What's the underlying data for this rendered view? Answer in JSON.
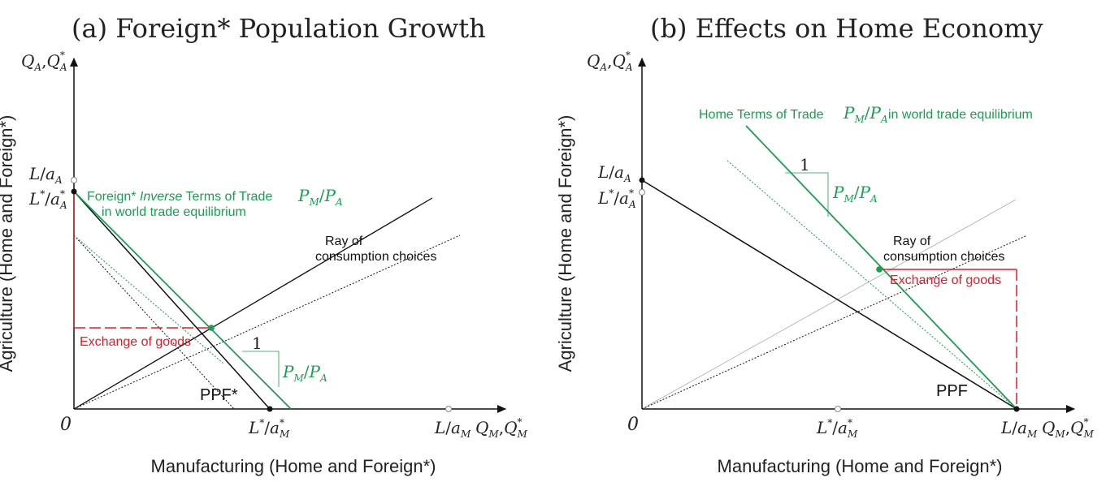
{
  "colors": {
    "green": "#1a9e50",
    "red": "#d9202a",
    "black": "#111111",
    "gray": "#999999"
  },
  "panel_a": {
    "title": "(a) Foreign* Population Growth",
    "y_axis_symbol": "Q_A, Q*_A",
    "x_axis_symbol": "Q_M, Q*_M",
    "origin": "0",
    "x_label": "Manufacturing (Home and Foreign*)",
    "y_label": "Agriculture (Home and Foreign*)",
    "tick_y_home": "L/a_A",
    "tick_y_foreign": "L*/a*_A",
    "tick_x_foreign": "L*/a*_M",
    "tick_x_home": "L/a_M",
    "tot_label_part1": "Foreign* ",
    "tot_label_italic": "Inverse",
    "tot_label_part2": " Terms of Trade",
    "tot_label_line2": "in world trade equilibrium",
    "price_ratio": "P_M/P_A",
    "slope_one": "1",
    "ray_label_line1": "Ray of",
    "ray_label_line2": "consumption choices",
    "exchange_label": "Exchange of goods",
    "ppf_label": "PPF*"
  },
  "panel_b": {
    "title": "(b) Effects on Home Economy",
    "y_axis_symbol": "Q_A, Q*_A",
    "x_axis_symbol": "Q_M, Q*_M",
    "origin": "0",
    "x_label": "Manufacturing (Home and Foreign*)",
    "y_label": "Agriculture (Home and Foreign*)",
    "tick_y_home": "L/a_A",
    "tick_y_foreign": "L*/a*_A",
    "tick_x_foreign": "L*/a*_M",
    "tick_x_home": "L/a_M",
    "tot_label": "Home Terms of Trade",
    "tot_label_suffix": "in world trade equilibrium",
    "price_ratio": "P_M/P_A",
    "slope_one": "1",
    "ray_label_line1": "Ray of",
    "ray_label_line2": "consumption choices",
    "exchange_label": "Exchange of goods",
    "ppf_label": "PPF"
  }
}
